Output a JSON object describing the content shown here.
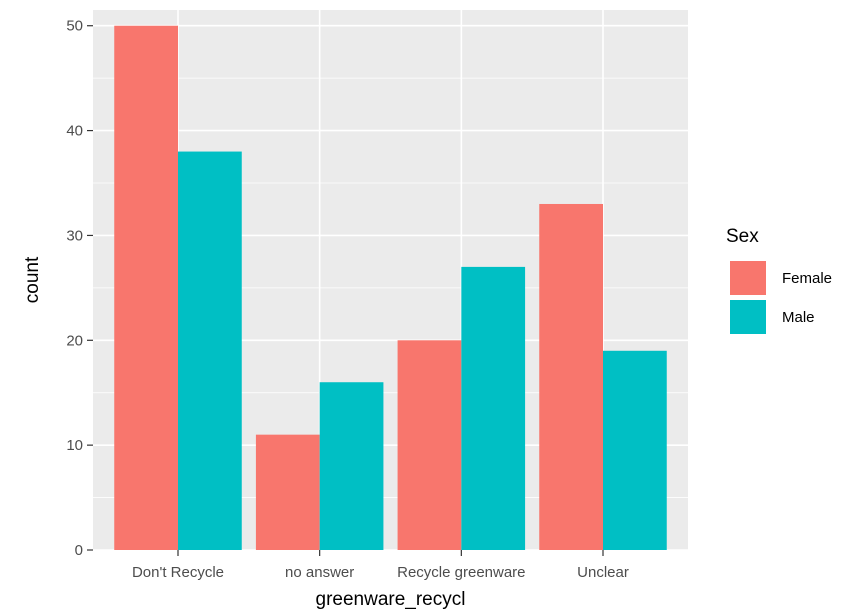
{
  "chart_data": {
    "type": "bar",
    "title": "",
    "xlabel": "greenware_recycl",
    "ylabel": "count",
    "categories": [
      "Don't Recycle",
      "no answer",
      "Recycle greenware",
      "Unclear"
    ],
    "series": [
      {
        "name": "Female",
        "color": "#F8766D",
        "values": [
          50,
          11,
          20,
          33
        ]
      },
      {
        "name": "Male",
        "color": "#00BFC4",
        "values": [
          38,
          16,
          27,
          19
        ]
      }
    ],
    "ylim": [
      0,
      51.5
    ],
    "yticks": [
      0,
      10,
      20,
      30,
      40,
      50
    ],
    "grid": true,
    "legend": {
      "title": "Sex",
      "position": "right"
    },
    "colors": {
      "panel": "#EBEBEB",
      "grid": "#FFFFFF",
      "tick_text": "#4D4D4D"
    }
  }
}
